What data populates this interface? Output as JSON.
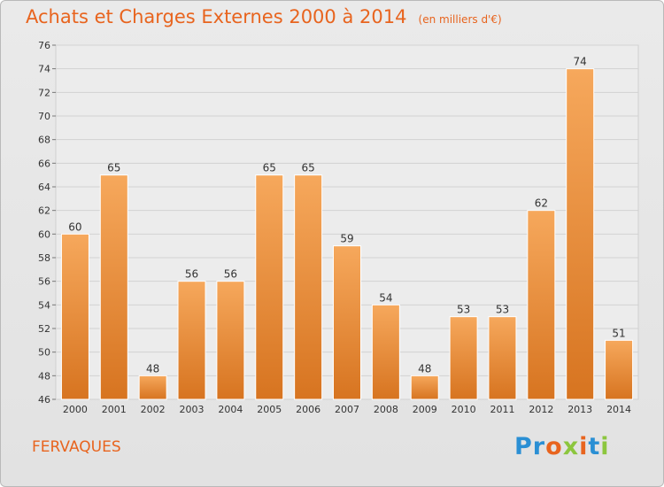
{
  "header": {
    "title": "Achats et Charges Externes 2000 à 2014",
    "unit": "(en milliers d'€)"
  },
  "footer": {
    "commune": "FERVAQUES",
    "logo_letters": [
      "P",
      "r",
      "o",
      "x",
      "i",
      "t",
      "i"
    ],
    "logo_colors": [
      "#2a8fd4",
      "#2a8fd4",
      "#e8641e",
      "#8cc63e",
      "#e8641e",
      "#2a8fd4",
      "#8cc63e"
    ]
  },
  "colors": {
    "bar_light": "#f6a85c",
    "bar_dark": "#d77420",
    "title": "#e8641e",
    "grid": "#d2d2d2",
    "axis_text": "#333333"
  },
  "chart_data": {
    "type": "bar",
    "categories": [
      "2000",
      "2001",
      "2002",
      "2003",
      "2004",
      "2005",
      "2006",
      "2007",
      "2008",
      "2009",
      "2010",
      "2011",
      "2012",
      "2013",
      "2014"
    ],
    "values": [
      60,
      65,
      48,
      56,
      56,
      65,
      65,
      59,
      54,
      48,
      53,
      53,
      62,
      74,
      51
    ],
    "ylim": [
      46,
      76
    ],
    "yticks": [
      46,
      48,
      50,
      52,
      54,
      56,
      58,
      60,
      62,
      64,
      66,
      68,
      70,
      72,
      74,
      76
    ],
    "grid": true,
    "title": "Achats et Charges Externes 2000 à 2014",
    "xlabel": "",
    "ylabel": ""
  }
}
